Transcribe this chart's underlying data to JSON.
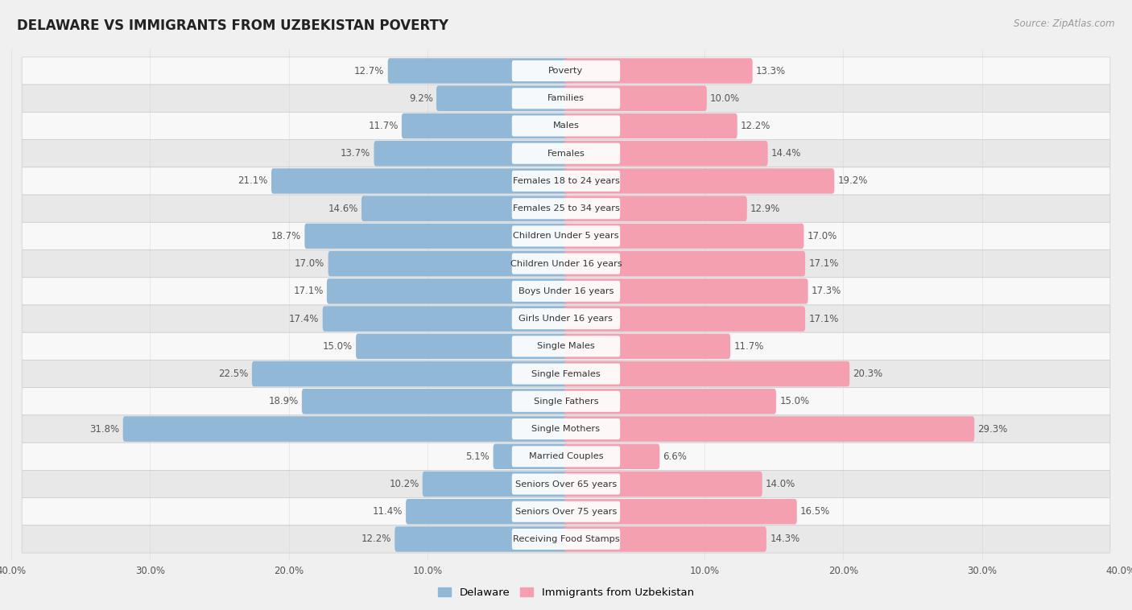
{
  "title": "DELAWARE VS IMMIGRANTS FROM UZBEKISTAN POVERTY",
  "source": "Source: ZipAtlas.com",
  "categories": [
    "Poverty",
    "Families",
    "Males",
    "Females",
    "Females 18 to 24 years",
    "Females 25 to 34 years",
    "Children Under 5 years",
    "Children Under 16 years",
    "Boys Under 16 years",
    "Girls Under 16 years",
    "Single Males",
    "Single Females",
    "Single Fathers",
    "Single Mothers",
    "Married Couples",
    "Seniors Over 65 years",
    "Seniors Over 75 years",
    "Receiving Food Stamps"
  ],
  "delaware": [
    12.7,
    9.2,
    11.7,
    13.7,
    21.1,
    14.6,
    18.7,
    17.0,
    17.1,
    17.4,
    15.0,
    22.5,
    18.9,
    31.8,
    5.1,
    10.2,
    11.4,
    12.2
  ],
  "uzbekistan": [
    13.3,
    10.0,
    12.2,
    14.4,
    19.2,
    12.9,
    17.0,
    17.1,
    17.3,
    17.1,
    11.7,
    20.3,
    15.0,
    29.3,
    6.6,
    14.0,
    16.5,
    14.3
  ],
  "delaware_color": "#92b8d8",
  "uzbekistan_color": "#f4a0b0",
  "background_color": "#f0f0f0",
  "bar_background_even": "#e8e8e8",
  "bar_background_odd": "#f8f8f8",
  "xlim": 40.0,
  "legend_labels": [
    "Delaware",
    "Immigrants from Uzbekistan"
  ],
  "xtick_labels": [
    "40.0%",
    "30.0%",
    "20.0%",
    "10.0%",
    "",
    "10.0%",
    "20.0%",
    "30.0%",
    "40.0%"
  ],
  "xtick_positions": [
    -40,
    -30,
    -20,
    -10,
    0,
    10,
    20,
    30,
    40
  ]
}
